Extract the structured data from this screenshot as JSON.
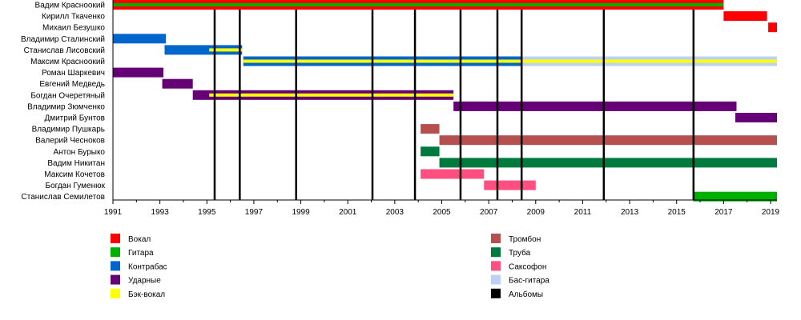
{
  "chart_data": {
    "type": "timeline",
    "title": "",
    "xlabel": "",
    "ylabel": "",
    "xlim": [
      1991,
      2019.3
    ],
    "x_ticks": [
      "1991",
      "1993",
      "1995",
      "1997",
      "1999",
      "2001",
      "2003",
      "2005",
      "2007",
      "2009",
      "2011",
      "2013",
      "2015",
      "2017",
      "2019"
    ],
    "colors": {
      "vocal": "#FF0000",
      "guitar": "#00B000",
      "double_bass": "#0066CC",
      "drums": "#660077",
      "backing_vocal": "#FFFF00",
      "trombone": "#B5504F",
      "trumpet": "#007A3D",
      "sax": "#FF4F80",
      "bass_guitar": "#BCD2F5",
      "albums": "#000000"
    },
    "members": [
      {
        "name": "Вадим Красноокий",
        "bars": [
          {
            "role": "vocal",
            "start": 1991,
            "end": 2017.0,
            "stripe": "guitar"
          }
        ]
      },
      {
        "name": "Кирилл Ткаченко",
        "bars": [
          {
            "role": "vocal",
            "start": 2017.0,
            "end": 2018.85
          }
        ]
      },
      {
        "name": "Михаил Безушко",
        "bars": [
          {
            "role": "vocal",
            "start": 2018.9,
            "end": 2019.3
          }
        ]
      },
      {
        "name": "Владимир Сталинский",
        "bars": [
          {
            "role": "double_bass",
            "start": 1991,
            "end": 1993.25
          }
        ]
      },
      {
        "name": "Станислав Лисовский",
        "bars": [
          {
            "role": "double_bass",
            "start": 1993.2,
            "end": 1996.5
          },
          {
            "role": "backing_vocal",
            "start": 1995.1,
            "end": 1996.5,
            "stripe_only": true
          }
        ]
      },
      {
        "name": "Максим Красноокий",
        "bars": [
          {
            "role": "double_bass",
            "start": 1996.55,
            "end": 2008.4,
            "stripe": "backing_vocal"
          },
          {
            "role": "bass_guitar",
            "start": 2008.4,
            "end": 2019.3,
            "stripe": "backing_vocal"
          }
        ]
      },
      {
        "name": "Роман Шаркевич",
        "bars": [
          {
            "role": "drums",
            "start": 1991,
            "end": 1993.15
          }
        ]
      },
      {
        "name": "Евгений Медведь",
        "bars": [
          {
            "role": "drums",
            "start": 1993.1,
            "end": 1994.4
          }
        ]
      },
      {
        "name": "Богдан Очеретяный",
        "bars": [
          {
            "role": "drums",
            "start": 1994.4,
            "end": 2005.5
          },
          {
            "role": "backing_vocal",
            "start": 1995.1,
            "end": 2005.5,
            "stripe_only": true
          }
        ]
      },
      {
        "name": "Владимир Зюмченко",
        "bars": [
          {
            "role": "drums",
            "start": 2005.5,
            "end": 2017.55
          }
        ]
      },
      {
        "name": "Дмитрий Бунтов",
        "bars": [
          {
            "role": "drums",
            "start": 2017.5,
            "end": 2019.3
          }
        ]
      },
      {
        "name": "Владимир Пушкарь",
        "bars": [
          {
            "role": "trombone",
            "start": 2004.1,
            "end": 2004.9
          }
        ]
      },
      {
        "name": "Валерий Чесноков",
        "bars": [
          {
            "role": "trombone",
            "start": 2004.9,
            "end": 2019.3
          }
        ]
      },
      {
        "name": "Антон Бурыко",
        "bars": [
          {
            "role": "trumpet",
            "start": 2004.1,
            "end": 2004.9
          }
        ]
      },
      {
        "name": "Вадим Никитан",
        "bars": [
          {
            "role": "trumpet",
            "start": 2004.9,
            "end": 2019.3
          }
        ]
      },
      {
        "name": "Максим Кочетов",
        "bars": [
          {
            "role": "sax",
            "start": 2004.1,
            "end": 2006.8
          }
        ]
      },
      {
        "name": "Богдан Гуменюк",
        "bars": [
          {
            "role": "sax",
            "start": 2006.8,
            "end": 2009.0
          }
        ]
      },
      {
        "name": "Станислав Семилетов",
        "bars": [
          {
            "role": "guitar",
            "start": 2015.7,
            "end": 2019.3
          }
        ]
      }
    ],
    "albums": [
      1995.33,
      1996.4,
      1998.8,
      2002.05,
      2003.86,
      2005.8,
      2007.37,
      2008.4,
      2011.9,
      2015.72
    ],
    "legend": {
      "placement": "bottom",
      "left": [
        {
          "key": "vocal",
          "label": "Вокал"
        },
        {
          "key": "guitar",
          "label": "Гитара"
        },
        {
          "key": "double_bass",
          "label": "Контрабас"
        },
        {
          "key": "drums",
          "label": "Ударные"
        },
        {
          "key": "backing_vocal",
          "label": "Бэк-вокал"
        }
      ],
      "right": [
        {
          "key": "trombone",
          "label": "Тромбон"
        },
        {
          "key": "trumpet",
          "label": "Труба"
        },
        {
          "key": "sax",
          "label": "Саксофон"
        },
        {
          "key": "bass_guitar",
          "label": "Бас-гитара"
        },
        {
          "key": "albums",
          "label": "Альбомы"
        }
      ]
    }
  }
}
